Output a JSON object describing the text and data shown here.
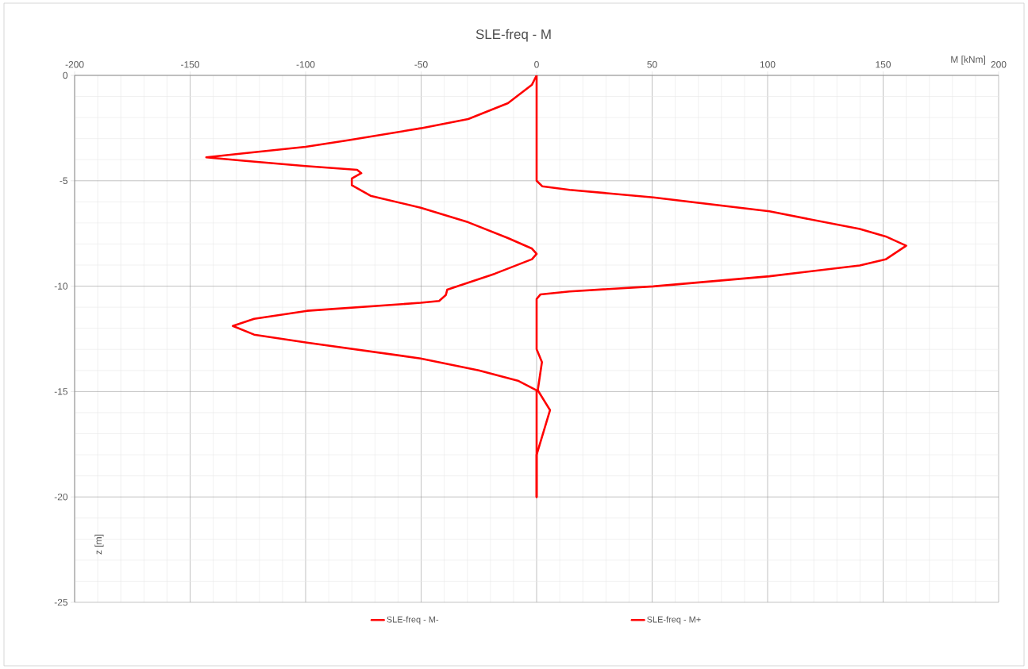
{
  "chart_data": {
    "type": "line",
    "title": "SLE-freq - M",
    "xlabel": "M [kNm]",
    "ylabel": "z [m]",
    "xlim": [
      -200,
      200
    ],
    "xticks": [
      -200,
      -150,
      -100,
      -50,
      0,
      50,
      100,
      150,
      200
    ],
    "ylim": [
      -25,
      0
    ],
    "yticks": [
      -25,
      -20,
      -15,
      -10,
      -5,
      0
    ],
    "grid": true,
    "legend": "bottom",
    "marker": "none",
    "line_style": "solid",
    "series": [
      {
        "name": "SLE-freq - M-",
        "color": "#ff0000",
        "x": [
          0,
          -2,
          -12.4,
          -29.6,
          -50.2,
          -81.1,
          -100,
          -127,
          -143,
          -127,
          -100,
          -77.7,
          -75.9,
          -80,
          -80,
          -71.9,
          -50.2,
          -29.6,
          -12.4,
          -2,
          0,
          -2,
          -18.1,
          -38.7,
          -39.3,
          -42.2,
          -50.2,
          -99.4,
          -122.3,
          -131.5,
          -122.3,
          -99.4,
          -50.2,
          -25,
          -7.8,
          0,
          0
        ],
        "values": [
          0,
          -0.44,
          -1.32,
          -2.07,
          -2.51,
          -3.07,
          -3.39,
          -3.7,
          -3.89,
          -4.05,
          -4.3,
          -4.48,
          -4.64,
          -4.89,
          -5.21,
          -5.71,
          -6.28,
          -6.97,
          -7.72,
          -8.22,
          -8.47,
          -8.72,
          -9.41,
          -10.17,
          -10.42,
          -10.7,
          -10.79,
          -11.17,
          -11.55,
          -11.89,
          -12.3,
          -12.68,
          -13.43,
          -14,
          -14.5,
          -14.94,
          -20
        ]
      },
      {
        "name": "SLE-freq - M+",
        "color": "#ff0000",
        "x": [
          0,
          0,
          2.4,
          14.3,
          50.5,
          100.8,
          139.9,
          151.1,
          160,
          151.1,
          139.9,
          100.8,
          50.5,
          14.3,
          1.7,
          0,
          0,
          2.3,
          0.5,
          5.8,
          0,
          0
        ],
        "values": [
          0,
          -5,
          -5.26,
          -5.43,
          -5.79,
          -6.45,
          -7.29,
          -7.64,
          -8.08,
          -8.73,
          -9.02,
          -9.53,
          -10.01,
          -10.25,
          -10.39,
          -10.61,
          -12.99,
          -13.6,
          -14.94,
          -15.88,
          -18,
          -20
        ]
      }
    ]
  }
}
